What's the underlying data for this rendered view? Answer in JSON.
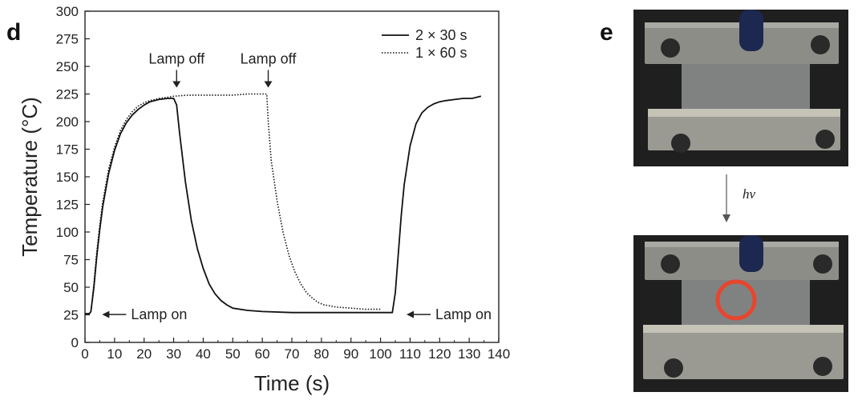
{
  "panels": {
    "left_label": "d",
    "right_label": "e"
  },
  "photo_arrow_label": "hν",
  "colors": {
    "axis": "#222222",
    "line": "#111111",
    "ring": "#e8452e",
    "photo_bg": "#1f1f1f",
    "metal": "#8d8d88",
    "film": "#cfd3d4"
  },
  "chart_data": {
    "type": "line",
    "title": "",
    "xlabel": "Time (s)",
    "ylabel": "Temperature (°C)",
    "xlim": [
      0,
      140
    ],
    "ylim": [
      0,
      300
    ],
    "xticks": [
      0,
      10,
      20,
      30,
      40,
      50,
      60,
      70,
      80,
      90,
      100,
      110,
      120,
      130,
      140
    ],
    "yticks": [
      0,
      25,
      50,
      75,
      100,
      125,
      150,
      175,
      200,
      225,
      250,
      275,
      300
    ],
    "grid": false,
    "legend_position": "top-right",
    "series": [
      {
        "name": "2 × 30 s",
        "style": "solid",
        "x": [
          0,
          1.5,
          2,
          3,
          4,
          5,
          6,
          8,
          10,
          12,
          14,
          16,
          18,
          20,
          22,
          25,
          28,
          30,
          31,
          32,
          34,
          36,
          38,
          40,
          42,
          44,
          46,
          48,
          50,
          55,
          60,
          70,
          80,
          90,
          100,
          104,
          105,
          106,
          107,
          108,
          110,
          112,
          114,
          116,
          118,
          120,
          122,
          125,
          128,
          131,
          134
        ],
        "values": [
          26,
          26,
          28,
          50,
          78,
          102,
          123,
          153,
          174,
          189,
          199,
          206,
          211,
          215,
          218,
          220,
          221,
          221,
          215,
          190,
          145,
          110,
          85,
          67,
          53,
          44,
          38,
          34,
          31,
          29,
          28,
          27,
          27,
          27,
          27,
          27,
          45,
          80,
          115,
          143,
          178,
          198,
          208,
          213,
          216,
          218,
          219,
          220,
          221,
          221,
          223
        ]
      },
      {
        "name": "1 × 60 s",
        "style": "dotted",
        "x": [
          0,
          1.5,
          2,
          3,
          4,
          5,
          6,
          8,
          10,
          12,
          14,
          16,
          18,
          20,
          22,
          25,
          28,
          30,
          35,
          40,
          45,
          50,
          55,
          60,
          61.5,
          62,
          63,
          65,
          67,
          69,
          71,
          73,
          75,
          77,
          79,
          81,
          85,
          90,
          95,
          100
        ],
        "values": [
          26,
          26,
          28,
          53,
          82,
          106,
          127,
          157,
          177,
          192,
          202,
          209,
          214,
          217,
          219,
          221,
          222,
          223,
          224,
          224,
          224,
          224,
          225,
          225,
          225,
          200,
          165,
          128,
          100,
          79,
          64,
          53,
          45,
          40,
          36,
          34,
          32,
          31,
          30,
          30
        ]
      }
    ],
    "annotations": [
      {
        "text": "Lamp off",
        "x": 31,
        "y": 225,
        "arrow": "down"
      },
      {
        "text": "Lamp off",
        "x": 62,
        "y": 225,
        "arrow": "down"
      },
      {
        "text": "Lamp on",
        "x": 2,
        "y": 26,
        "arrow": "left"
      },
      {
        "text": "Lamp on",
        "x": 105,
        "y": 26,
        "arrow": "left"
      }
    ]
  }
}
